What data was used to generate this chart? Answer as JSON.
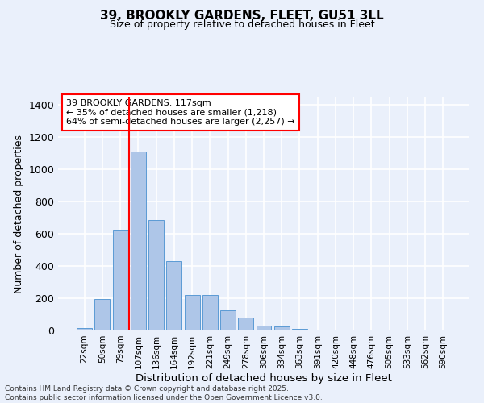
{
  "title": "39, BROOKLY GARDENS, FLEET, GU51 3LL",
  "subtitle": "Size of property relative to detached houses in Fleet",
  "xlabel": "Distribution of detached houses by size in Fleet",
  "ylabel": "Number of detached properties",
  "categories": [
    "22sqm",
    "50sqm",
    "79sqm",
    "107sqm",
    "136sqm",
    "164sqm",
    "192sqm",
    "221sqm",
    "249sqm",
    "278sqm",
    "306sqm",
    "334sqm",
    "363sqm",
    "391sqm",
    "420sqm",
    "448sqm",
    "476sqm",
    "505sqm",
    "533sqm",
    "562sqm",
    "590sqm"
  ],
  "values": [
    15,
    195,
    625,
    1110,
    685,
    430,
    220,
    220,
    125,
    80,
    30,
    25,
    10,
    0,
    0,
    0,
    0,
    0,
    0,
    0,
    0
  ],
  "bar_color": "#aec6e8",
  "bar_edge_color": "#5b9bd5",
  "background_color": "#eaf0fb",
  "grid_color": "#ffffff",
  "vline_x_index": 3,
  "vline_color": "red",
  "annotation_text": "39 BROOKLY GARDENS: 117sqm\n← 35% of detached houses are smaller (1,218)\n64% of semi-detached houses are larger (2,257) →",
  "annotation_box_color": "white",
  "annotation_box_edge": "red",
  "ylim": [
    0,
    1450
  ],
  "yticks": [
    0,
    200,
    400,
    600,
    800,
    1000,
    1200,
    1400
  ],
  "title_fontsize": 11,
  "subtitle_fontsize": 9,
  "footer": "Contains HM Land Registry data © Crown copyright and database right 2025.\nContains public sector information licensed under the Open Government Licence v3.0."
}
